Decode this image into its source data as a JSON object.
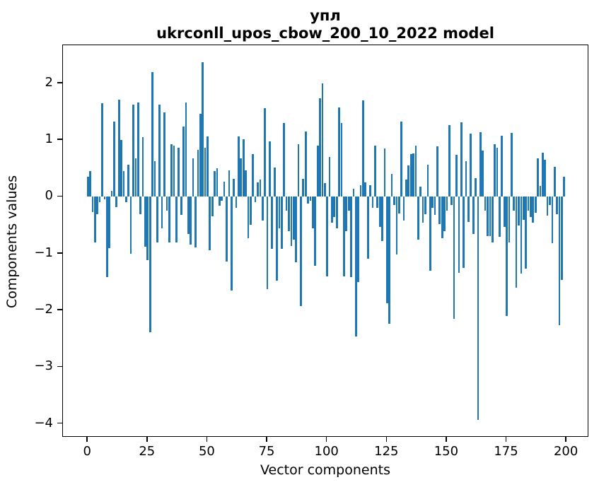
{
  "title": {
    "line1": "упл",
    "line2": "ukrconll_upos_cbow_200_10_2022 model"
  },
  "axes": {
    "ylabel": "Components values",
    "xlabel": "Vector components"
  },
  "chart_data": {
    "type": "bar",
    "title": "упл\nukrconll_upos_cbow_200_10_2022 model",
    "xlabel": "Vector components",
    "ylabel": "Components values",
    "bar_color": "#1f77b4",
    "grid": false,
    "legend": null,
    "xlim": [
      -10.4,
      209.4
    ],
    "ylim": [
      -4.24,
      2.67
    ],
    "x_ticks": [
      0,
      25,
      50,
      75,
      100,
      125,
      150,
      175,
      200
    ],
    "x_tick_labels": [
      "0",
      "25",
      "50",
      "75",
      "100",
      "125",
      "150",
      "175",
      "200"
    ],
    "y_ticks": [
      2,
      1,
      0,
      -1,
      -2,
      -3,
      -4
    ],
    "y_tick_labels": [
      "2",
      "1",
      "0",
      "−1",
      "−2",
      "−3",
      "−4"
    ],
    "x_start": 0,
    "bar_width": 0.8,
    "values": [
      0.35,
      0.45,
      -0.27,
      -0.8,
      -0.3,
      -0.1,
      1.65,
      -0.05,
      -1.42,
      -0.9,
      0.1,
      1.32,
      -0.18,
      1.71,
      1.0,
      0.45,
      -0.1,
      0.57,
      -1.0,
      1.63,
      0.68,
      1.66,
      -0.3,
      1.05,
      -0.88,
      -1.12,
      -2.38,
      2.2,
      0.63,
      -0.8,
      1.62,
      -0.56,
      1.49,
      -0.24,
      -0.8,
      0.93,
      0.9,
      -0.8,
      0.87,
      -0.32,
      1.24,
      1.66,
      -0.65,
      -0.84,
      0.68,
      -0.89,
      0.83,
      1.46,
      2.37,
      0.87,
      1.07,
      -0.94,
      -0.34,
      0.45,
      0.5,
      -0.16,
      -0.07,
      0.27,
      -1.14,
      0.47,
      -1.65,
      0.32,
      -0.2,
      1.07,
      0.68,
      1.01,
      0.47,
      -0.73,
      -0.49,
      0.75,
      -0.1,
      0.26,
      0.3,
      -0.42,
      1.56,
      -1.63,
      0.98,
      -0.92,
      0.52,
      -1.48,
      -0.56,
      -0.91,
      1.3,
      -0.24,
      -0.61,
      -0.86,
      -0.75,
      -1.15,
      0.93,
      -1.92,
      0.32,
      1.15,
      -0.12,
      -0.07,
      -0.55,
      -1.21,
      0.9,
      1.73,
      2.0,
      0.24,
      -1.4,
      0.7,
      -0.45,
      -0.35,
      -0.55,
      1.58,
      1.3,
      -1.4,
      -0.61,
      -0.24,
      -1.42,
      0.14,
      -2.46,
      -1.5,
      0.2,
      1.7,
      0.25,
      -1.09,
      0.2,
      -0.2,
      0.9,
      -0.2,
      -0.53,
      -0.78,
      0.85,
      -1.88,
      -2.23,
      0.4,
      -0.15,
      -1.02,
      -0.29,
      1.33,
      -0.42,
      0.3,
      0.55,
      0.75,
      0.77,
      0.9,
      -0.76,
      0.18,
      -0.46,
      -0.3,
      0.57,
      -1.3,
      -0.2,
      -0.32,
      0.89,
      -0.48,
      -0.73,
      -0.6,
      -0.24,
      1.26,
      -0.15,
      -2.15,
      0.74,
      -1.34,
      1.31,
      -1.25,
      0.63,
      -0.44,
      1.11,
      -0.65,
      0.33,
      -3.93,
      1.14,
      0.82,
      -0.24,
      -0.69,
      -0.69,
      -0.8,
      0.93,
      0.86,
      -0.71,
      1.08,
      -0.53,
      -2.1,
      -0.8,
      1.13,
      -0.24,
      -1.6,
      -0.5,
      -1.35,
      -0.4,
      -1.27,
      -0.24,
      -0.36,
      -0.46,
      -0.28,
      0.68,
      0.19,
      0.78,
      0.65,
      -0.33,
      -0.15,
      -0.82,
      0.53,
      -0.3,
      -2.26,
      -1.46,
      0.35
    ]
  }
}
